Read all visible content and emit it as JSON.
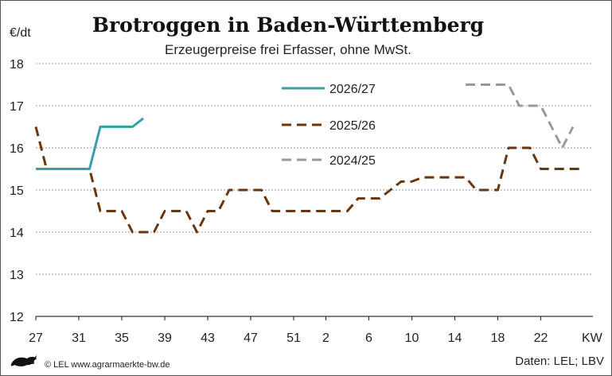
{
  "chart_data": {
    "type": "line",
    "title": "Brotroggen in Baden-Württemberg",
    "subtitle": "Erzeugerpreise frei Erfasser, ohne MwSt.",
    "ylabel": "€/dt",
    "xlabel": "KW",
    "ylim": [
      12,
      18
    ],
    "yticks": [
      "12",
      "13",
      "14",
      "15",
      "16",
      "17",
      "18"
    ],
    "xticks": [
      "27",
      "31",
      "35",
      "39",
      "43",
      "47",
      "51",
      "2",
      "6",
      "10",
      "14",
      "18",
      "22"
    ],
    "grid": true,
    "legend_position": "top-center",
    "series": [
      {
        "name": "2026/27",
        "color": "#3a9ea9",
        "style": "solid",
        "points": [
          [
            "27",
            15.5
          ],
          [
            "28",
            15.5
          ],
          [
            "29",
            15.5
          ],
          [
            "30",
            15.5
          ],
          [
            "31",
            15.5
          ],
          [
            "32",
            15.5
          ],
          [
            "33",
            16.5
          ],
          [
            "34",
            16.5
          ],
          [
            "35",
            16.5
          ],
          [
            "36",
            16.5
          ],
          [
            "37",
            16.7
          ]
        ]
      },
      {
        "name": "2025/26",
        "color": "#6b3510",
        "style": "dashed",
        "points": [
          [
            "27",
            16.5
          ],
          [
            "28",
            15.5
          ],
          [
            "29",
            15.5
          ],
          [
            "30",
            15.5
          ],
          [
            "31",
            15.5
          ],
          [
            "32",
            15.5
          ],
          [
            "33",
            14.5
          ],
          [
            "34",
            14.5
          ],
          [
            "35",
            14.5
          ],
          [
            "36",
            14.0
          ],
          [
            "37",
            14.0
          ],
          [
            "38",
            14.0
          ],
          [
            "39",
            14.5
          ],
          [
            "40",
            14.5
          ],
          [
            "41",
            14.5
          ],
          [
            "42",
            14.0
          ],
          [
            "43",
            14.5
          ],
          [
            "44",
            14.5
          ],
          [
            "45",
            15.0
          ],
          [
            "46",
            15.0
          ],
          [
            "47",
            15.0
          ],
          [
            "48",
            15.0
          ],
          [
            "49",
            14.5
          ],
          [
            "50",
            14.5
          ],
          [
            "51",
            14.5
          ],
          [
            "52",
            14.5
          ],
          [
            "1",
            14.5
          ],
          [
            "2",
            14.5
          ],
          [
            "3",
            14.5
          ],
          [
            "4",
            14.5
          ],
          [
            "5",
            14.8
          ],
          [
            "6",
            14.8
          ],
          [
            "7",
            14.8
          ],
          [
            "8",
            15.0
          ],
          [
            "9",
            15.2
          ],
          [
            "10",
            15.2
          ],
          [
            "11",
            15.3
          ],
          [
            "12",
            15.3
          ],
          [
            "13",
            15.3
          ],
          [
            "14",
            15.3
          ],
          [
            "15",
            15.3
          ],
          [
            "16",
            15.0
          ],
          [
            "17",
            15.0
          ],
          [
            "18",
            15.0
          ],
          [
            "19",
            16.0
          ],
          [
            "20",
            16.0
          ],
          [
            "21",
            16.0
          ],
          [
            "22",
            15.5
          ],
          [
            "23",
            15.5
          ],
          [
            "24",
            15.5
          ],
          [
            "25",
            15.5
          ],
          [
            "26",
            15.5
          ]
        ]
      },
      {
        "name": "2024/25",
        "color": "#999999",
        "style": "dashed",
        "points": [
          [
            "15",
            17.5
          ],
          [
            "16",
            17.5
          ],
          [
            "17",
            17.5
          ],
          [
            "18",
            17.5
          ],
          [
            "19",
            17.5
          ],
          [
            "20",
            17.0
          ],
          [
            "21",
            17.0
          ],
          [
            "22",
            17.0
          ],
          [
            "23",
            16.5
          ],
          [
            "24",
            16.0
          ],
          [
            "25",
            16.5
          ]
        ]
      }
    ]
  },
  "footer": {
    "copyright": "© LEL www.agrarmaerkte-bw.de",
    "source": "Daten: LEL; LBV"
  }
}
